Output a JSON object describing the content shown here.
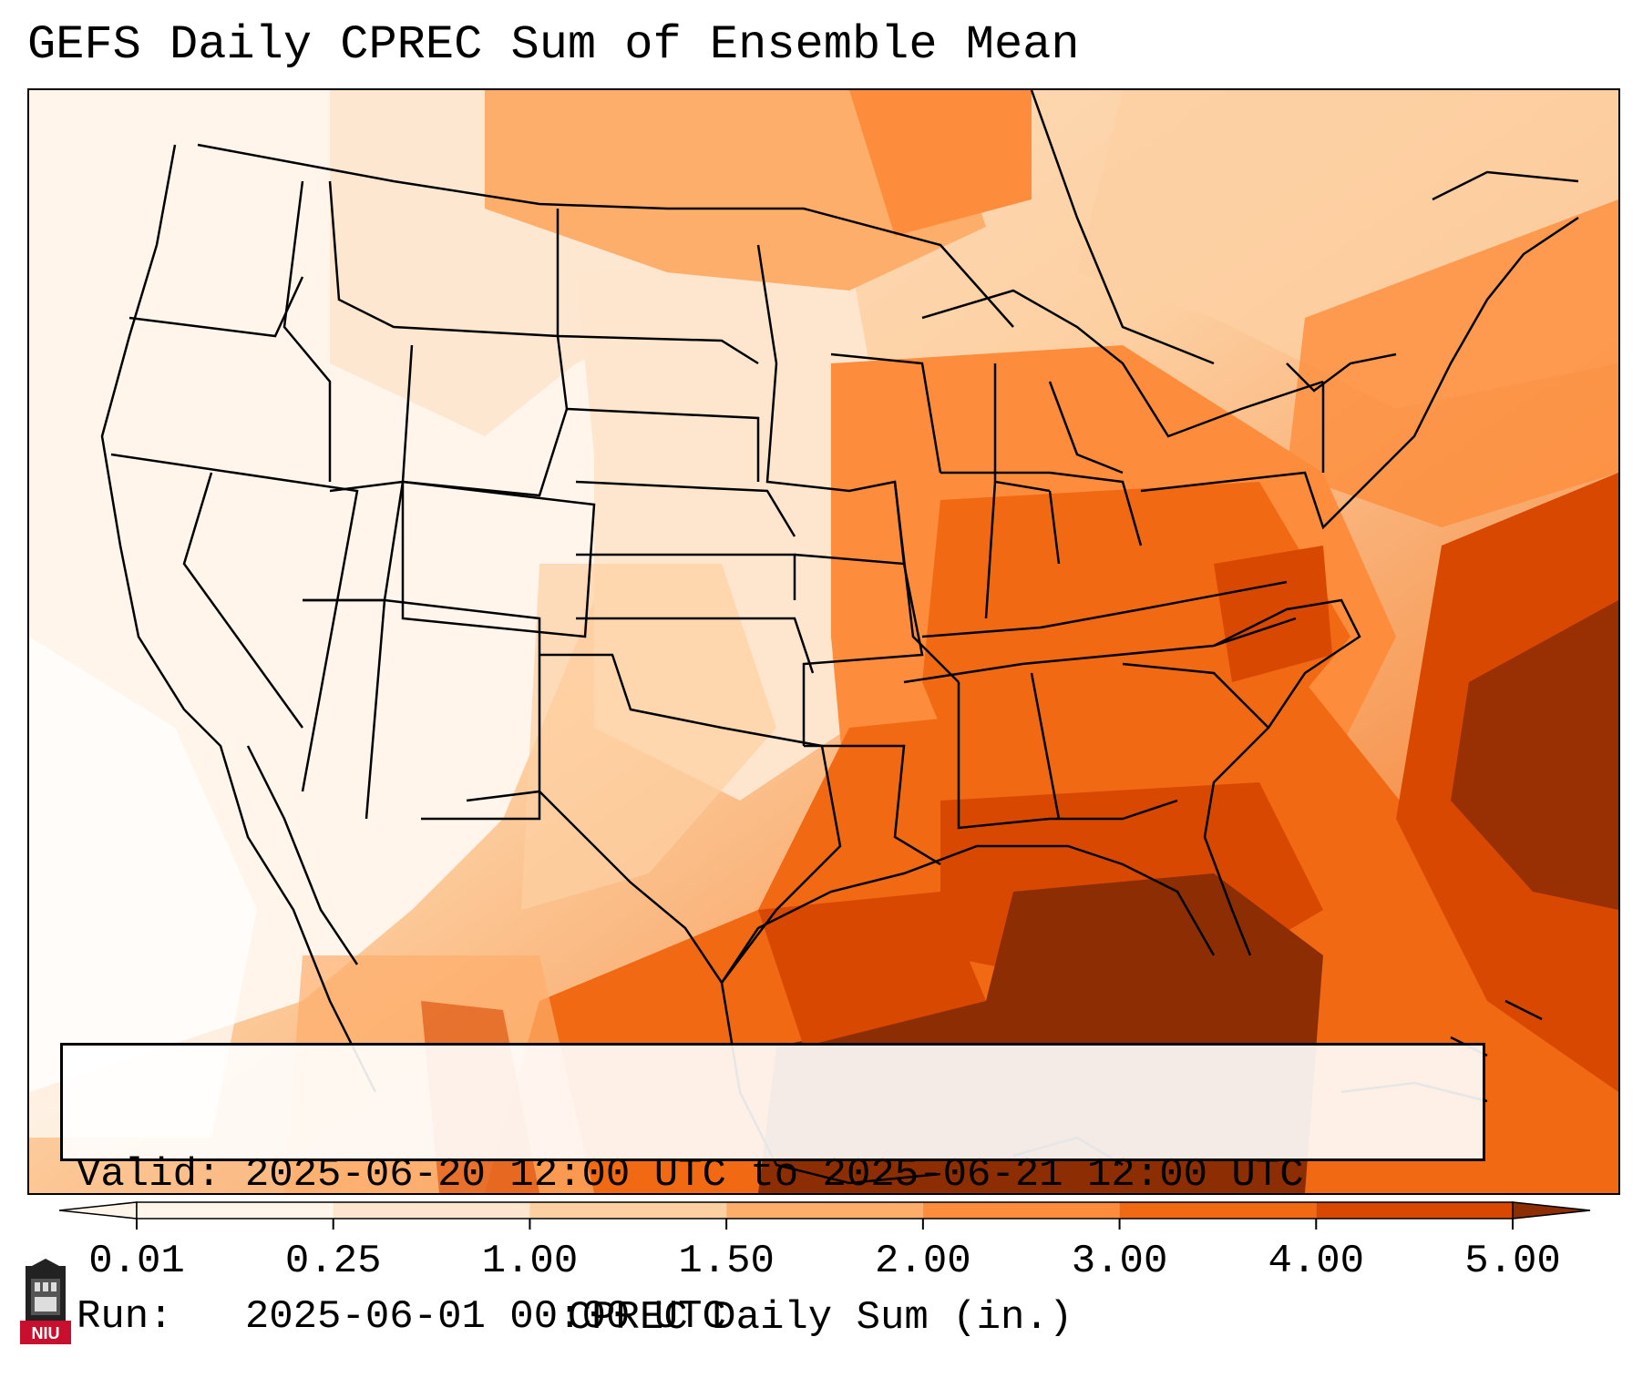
{
  "title": "GEFS Daily CPREC Sum of Ensemble Mean",
  "info": {
    "valid_label": "Valid:",
    "valid_value": "2025-06-20 12:00 UTC to 2025-06-21 12:00 UTC",
    "run_label": "Run:",
    "run_value": "2025-06-01 00:00 UTC"
  },
  "colorbar": {
    "label": "CPREC Daily Sum (in.)",
    "ticks": [
      "0.01",
      "0.25",
      "1.00",
      "1.50",
      "2.00",
      "3.00",
      "4.00",
      "5.00"
    ],
    "colors": [
      "#fff5eb",
      "#fee6ce",
      "#fdd0a2",
      "#fdae6b",
      "#fd8d3c",
      "#f16913",
      "#d94801",
      "#8c2d04"
    ],
    "extend": "both"
  },
  "logo": {
    "text": "NIU",
    "color": "#c8102e"
  }
}
